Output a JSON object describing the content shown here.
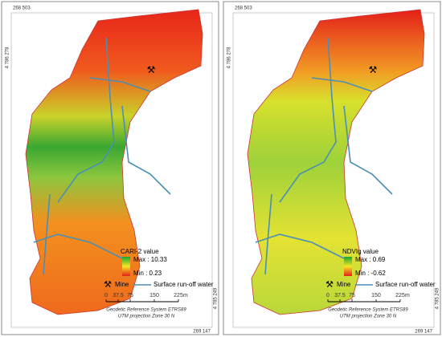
{
  "panels": [
    {
      "coord_top_left": "268 503",
      "coord_left": "4 786 278",
      "coord_right": "4 785 249",
      "coord_bottom_right": "269 147",
      "legend": {
        "title": "CARI-2 value",
        "max": "Max : 10.33",
        "min": "Min : 0.23",
        "mine": "Mine",
        "water": "Surface run-off water"
      },
      "scale": {
        "ticks": [
          "0",
          "37.5",
          "75",
          "150",
          "225"
        ],
        "unit": "m"
      },
      "reference": [
        "Geodetic Reference System ETRS89",
        "UTM projection Zone 30 N"
      ]
    },
    {
      "coord_top_left": "268 503",
      "coord_left": "4 786 278",
      "coord_right": "4 785 249",
      "coord_bottom_right": "269 147",
      "legend": {
        "title": "NDVIg value",
        "max": "Max : 0.69",
        "min": "Min : -0.62",
        "mine": "Mine",
        "water": "Surface run-off water"
      },
      "scale": {
        "ticks": [
          "0",
          "37.5",
          "75",
          "150",
          "225"
        ],
        "unit": "m"
      },
      "reference": [
        "Geodetic Reference System ETRS89",
        "UTM projection Zone 30 N"
      ]
    }
  ]
}
